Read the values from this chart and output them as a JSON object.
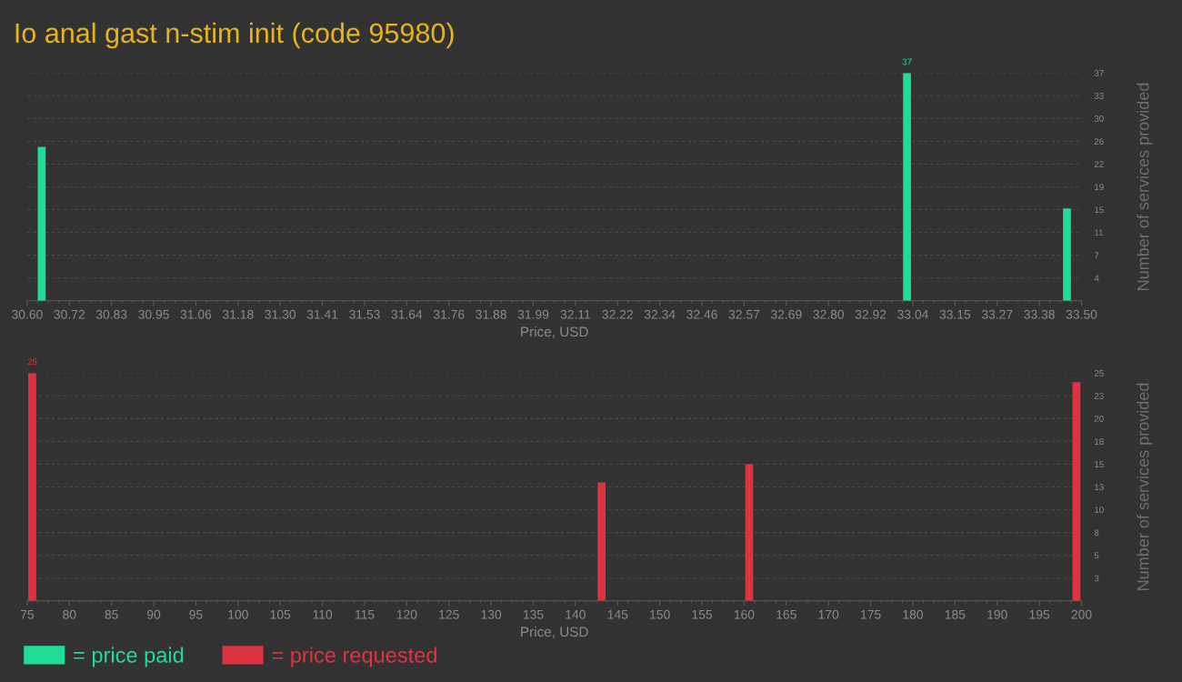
{
  "chart_data": [
    {
      "type": "bar",
      "title": "Io anal gast n-stim init (code 95980)",
      "xlabel": "Price, USD",
      "ylabel": "Number of services provided",
      "x": [
        30.64,
        33.02,
        33.46
      ],
      "series": [
        {
          "name": "= price paid",
          "color": "#20dc96",
          "values": [
            25,
            37,
            15
          ],
          "value_labels": [
            null,
            "37",
            null
          ]
        }
      ],
      "xlim": [
        30.6,
        33.5
      ],
      "xticks": [
        {
          "value": 30.6,
          "label": "30.60"
        },
        {
          "value": 30.716,
          "label": "30.72"
        },
        {
          "value": 30.832,
          "label": "30.83"
        },
        {
          "value": 30.948,
          "label": "30.95"
        },
        {
          "value": 31.064,
          "label": "31.06"
        },
        {
          "value": 31.18,
          "label": "31.18"
        },
        {
          "value": 31.296,
          "label": "31.30"
        },
        {
          "value": 31.412,
          "label": "31.41"
        },
        {
          "value": 31.528,
          "label": "31.53"
        },
        {
          "value": 31.644,
          "label": "31.64"
        },
        {
          "value": 31.76,
          "label": "31.76"
        },
        {
          "value": 31.876,
          "label": "31.88"
        },
        {
          "value": 31.992,
          "label": "31.99"
        },
        {
          "value": 32.108,
          "label": "32.11"
        },
        {
          "value": 32.224,
          "label": "32.22"
        },
        {
          "value": 32.34,
          "label": "32.34"
        },
        {
          "value": 32.456,
          "label": "32.46"
        },
        {
          "value": 32.572,
          "label": "32.57"
        },
        {
          "value": 32.688,
          "label": "32.69"
        },
        {
          "value": 32.804,
          "label": "32.80"
        },
        {
          "value": 32.92,
          "label": "32.92"
        },
        {
          "value": 33.036,
          "label": "33.04"
        },
        {
          "value": 33.152,
          "label": "33.15"
        },
        {
          "value": 33.268,
          "label": "33.27"
        },
        {
          "value": 33.384,
          "label": "33.38"
        },
        {
          "value": 33.5,
          "label": "33.50"
        }
      ],
      "ylim": [
        0,
        37
      ],
      "yticks": [
        {
          "value": 3.7,
          "label": "4"
        },
        {
          "value": 7.4,
          "label": "7"
        },
        {
          "value": 11.1,
          "label": "11"
        },
        {
          "value": 14.8,
          "label": "15"
        },
        {
          "value": 18.5,
          "label": "19"
        },
        {
          "value": 22.2,
          "label": "22"
        },
        {
          "value": 25.9,
          "label": "26"
        },
        {
          "value": 29.6,
          "label": "30"
        },
        {
          "value": 33.3,
          "label": "33"
        },
        37
      ],
      "grid": "y",
      "legend": "bottom"
    },
    {
      "type": "bar",
      "xlabel": "Price, USD",
      "ylabel": "Number of services provided",
      "x": [
        75.6,
        143.1,
        160.6,
        199.4
      ],
      "series": [
        {
          "name": "= price requested",
          "color": "#dd3340",
          "values": [
            25,
            13,
            15,
            24
          ],
          "value_labels": [
            "25",
            null,
            null,
            null
          ]
        }
      ],
      "xlim": [
        75,
        200
      ],
      "xticks": [
        75,
        80,
        85,
        90,
        95,
        100,
        105,
        110,
        115,
        120,
        125,
        130,
        135,
        140,
        145,
        150,
        155,
        160,
        165,
        170,
        175,
        180,
        185,
        190,
        195,
        200
      ],
      "ylim": [
        0,
        25
      ],
      "yticks": [
        {
          "value": 2.5,
          "label": "3"
        },
        5,
        {
          "value": 7.5,
          "label": "8"
        },
        10,
        {
          "value": 12.5,
          "label": "13"
        },
        15,
        {
          "value": 17.5,
          "label": "18"
        },
        20,
        {
          "value": 22.5,
          "label": "23"
        },
        25
      ],
      "grid": "y",
      "legend": "bottom"
    }
  ]
}
